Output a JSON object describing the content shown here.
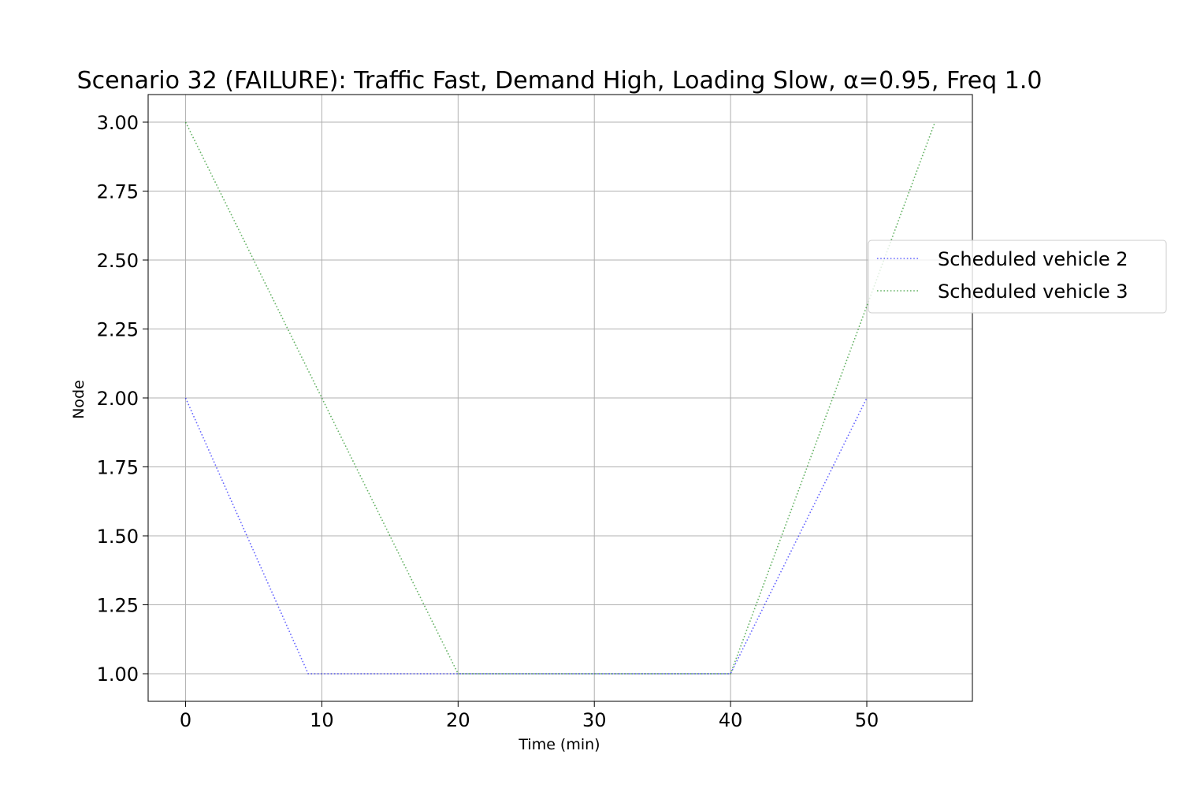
{
  "chart_data": {
    "type": "line",
    "title": "Scenario 32 (FAILURE): Traffic Fast, Demand High, Loading Slow, α=0.95, Freq 1.0",
    "xlabel": "Time (min)",
    "ylabel": "Node",
    "xlim": [
      -2.75,
      57.75
    ],
    "ylim": [
      0.9,
      3.1
    ],
    "xticks": [
      0,
      10,
      20,
      30,
      40,
      50
    ],
    "xtick_labels": [
      "0",
      "10",
      "20",
      "30",
      "40",
      "50"
    ],
    "yticks": [
      1.0,
      1.25,
      1.5,
      1.75,
      2.0,
      2.25,
      2.5,
      2.75,
      3.0
    ],
    "ytick_labels": [
      "1.00",
      "1.25",
      "1.50",
      "1.75",
      "2.00",
      "2.25",
      "2.50",
      "2.75",
      "3.00"
    ],
    "grid": true,
    "legend_position": "right",
    "series": [
      {
        "name": "Scheduled vehicle 2",
        "color": "#0000ff",
        "style": "dotted",
        "x": [
          0,
          9,
          20,
          40,
          50
        ],
        "y": [
          2,
          1,
          1,
          1,
          2
        ]
      },
      {
        "name": "Scheduled vehicle 3",
        "color": "#008000",
        "style": "dotted",
        "x": [
          0,
          20,
          40,
          55
        ],
        "y": [
          3,
          1,
          1,
          3
        ]
      }
    ]
  }
}
